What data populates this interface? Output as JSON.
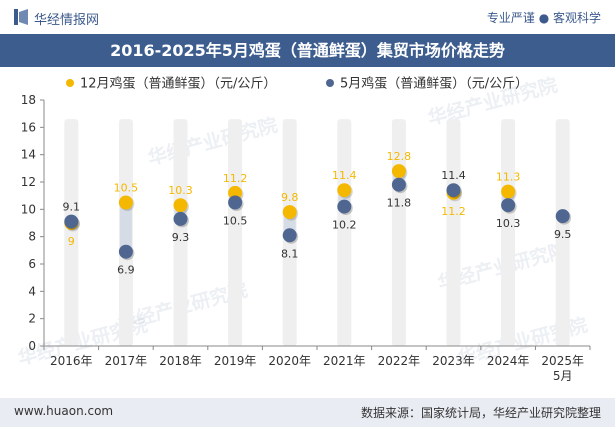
{
  "header": {
    "site_name": "华经情报网",
    "tagline": "专业严谨 ● 客观科学",
    "title": "2016-2025年5月鸡蛋（普通鲜蛋）集贸市场价格走势"
  },
  "footer": {
    "website": "www.huaon.com",
    "source": "数据来源：国家统计局，华经产业研究院整理"
  },
  "watermark": "华经产业研究院",
  "colors": {
    "series_dec": "#f5b800",
    "series_may": "#4f6690",
    "band": "#efefef",
    "title_bg": "#3d5d8f"
  },
  "chart_data": {
    "type": "scatter",
    "categories": [
      "2016年",
      "2017年",
      "2018年",
      "2019年",
      "2020年",
      "2021年",
      "2022年",
      "2023年",
      "2024年",
      "2025年\n5月"
    ],
    "series": [
      {
        "name": "12月鸡蛋（普通鲜蛋）（元/公斤）",
        "values": [
          9,
          10.5,
          10.3,
          11.2,
          9.8,
          11.4,
          12.8,
          11.2,
          11.3,
          null
        ]
      },
      {
        "name": "5月鸡蛋（普通鲜蛋）（元/公斤）",
        "values": [
          9.1,
          6.9,
          9.3,
          10.5,
          8.1,
          10.2,
          11.8,
          11.4,
          10.3,
          9.5
        ]
      }
    ],
    "ylim": [
      0,
      18
    ],
    "yticks": [
      0,
      2,
      4,
      6,
      8,
      10,
      12,
      14,
      16,
      18
    ],
    "legend_position": "top",
    "grid": false
  }
}
